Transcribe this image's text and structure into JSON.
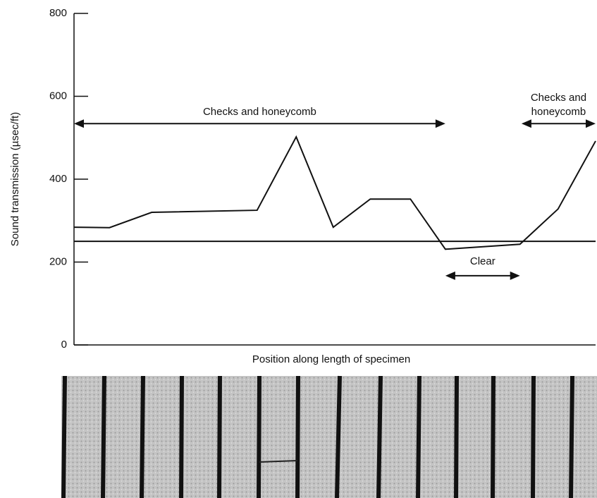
{
  "chart_data": {
    "type": "line",
    "y_label": "Sound transmission (µsec/ft)",
    "x_label": "Position along length of specimen",
    "x": [
      0,
      6.8,
      14.9,
      35.1,
      42.6,
      49.7,
      56.8,
      64.5,
      71.2,
      85.5,
      92.8,
      100
    ],
    "values": [
      284,
      283,
      320,
      325,
      502,
      284,
      352,
      352,
      231,
      243,
      328,
      492
    ],
    "color": "#111111",
    "reference_line": 250,
    "xlim": [
      0,
      100
    ],
    "ylim": [
      0,
      800
    ],
    "yticks": [
      0,
      200,
      400,
      600,
      800
    ],
    "annotations": [
      {
        "text": [
          "Checks and honeycomb"
        ],
        "x": [
          0,
          71.2
        ],
        "y": 534
      },
      {
        "text": [
          "Checks and",
          "honeycomb"
        ],
        "x": [
          85.8,
          100
        ],
        "y": 534
      },
      {
        "text": [
          "Clear"
        ],
        "x": [
          71.2,
          85.5
        ],
        "y": 167
      }
    ]
  }
}
